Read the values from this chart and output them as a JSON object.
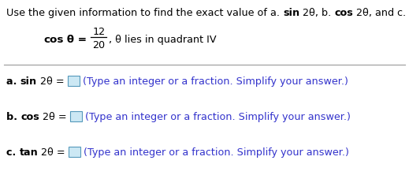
{
  "title_normal": "Use the given information to find the exact value of ",
  "title_parts": [
    [
      "a. ",
      false
    ],
    [
      "sin",
      true
    ],
    [
      " 2θ, ",
      false
    ],
    [
      "b. ",
      false
    ],
    [
      "cos",
      true
    ],
    [
      " 2θ, and ",
      false
    ],
    [
      "c. ",
      false
    ],
    [
      "tan",
      true
    ],
    [
      " 2θ.",
      false
    ]
  ],
  "given_label": "cos",
  "given_theta": " θ = ",
  "given_numerator": "12",
  "given_denominator": "20",
  "given_rest": ", θ lies in quadrant IV",
  "rows": [
    {
      "prefix": "a. ",
      "trig": "sin",
      "suffix": " 2θ = "
    },
    {
      "prefix": "b. ",
      "trig": "cos",
      "suffix": " 2θ = "
    },
    {
      "prefix": "c. ",
      "trig": "tan",
      "suffix": " 2θ = "
    }
  ],
  "row_hint": "(Type an integer or a fraction. Simplify your answer.)",
  "bg_color": "#ffffff",
  "text_color": "#000000",
  "blue_color": "#3333cc",
  "line_color": "#999999",
  "box_edge_color": "#5599bb",
  "box_fill_color": "#cce8f4",
  "title_fontsize": 9.2,
  "body_fontsize": 9.2,
  "given_fontsize": 9.2
}
